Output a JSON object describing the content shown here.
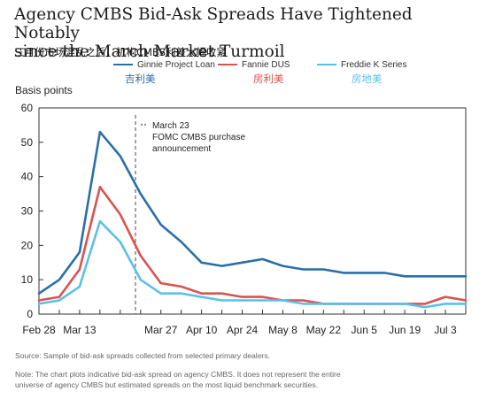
{
  "title_line1": "Agency CMBS Bid-Ask Spreads Have Tightened Notably",
  "title_line2": "since the March Market Turmoil",
  "subtitle_cn": "三月份市场混乱之后，机构CMBS利差大幅收紧",
  "legend": [
    {
      "label": "Ginnie Project Loan",
      "label_cn": "吉利美",
      "color": "#2a6fa8"
    },
    {
      "label": "Fannie DUS",
      "label_cn": "房利美",
      "color": "#d9534f"
    },
    {
      "label": "Freddie K Series",
      "label_cn": "房地美",
      "color": "#5bc0e8"
    }
  ],
  "ylabel": "Basis points",
  "annotation": {
    "line1": "March 23",
    "line2": "FOMC CMBS purchase",
    "line3": "announcement"
  },
  "source": "Source: Sample of bid-ask spreads collected from selected primary dealers.",
  "note_line1": "Note: The chart plots indicative bid-ask spread on agency CMBS. It does not represent the entire",
  "note_line2": "universe of agency CMBS but estimated spreads on the most liquid benchmark securities.",
  "chart_data": {
    "type": "line",
    "title": "Agency CMBS Bid-Ask Spreads Have Tightened Notably since the March Market Turmoil",
    "ylabel": "Basis points",
    "ylim": [
      0,
      60
    ],
    "yticks": [
      0,
      10,
      20,
      30,
      40,
      50,
      60
    ],
    "xticklabels": [
      "Feb 28",
      "Mar 13",
      "Mar 27",
      "Apr 10",
      "Apr 24",
      "May 8",
      "May 22",
      "Jun 5",
      "Jun 19",
      "Jul 3"
    ],
    "x": [
      "Feb 28",
      "Mar 6",
      "Mar 13",
      "Mar 17",
      "Mar 20",
      "Mar 24",
      "Mar 27",
      "Apr 3",
      "Apr 10",
      "Apr 17",
      "Apr 24",
      "May 1",
      "May 8",
      "May 15",
      "May 22",
      "May 29",
      "Jun 5",
      "Jun 12",
      "Jun 19",
      "Jun 26",
      "Jul 3",
      "Jul 10"
    ],
    "vline": {
      "x": "Mar 23",
      "style": "dashed"
    },
    "series": [
      {
        "name": "Ginnie Project Loan",
        "color": "#2a6fa8",
        "values": [
          6,
          10,
          18,
          53,
          46,
          35,
          26,
          21,
          15,
          14,
          15,
          16,
          14,
          13,
          13,
          12,
          12,
          12,
          11,
          11,
          11,
          11
        ]
      },
      {
        "name": "Fannie DUS",
        "color": "#d9534f",
        "values": [
          4,
          5,
          13,
          37,
          29,
          17,
          9,
          8,
          6,
          6,
          5,
          5,
          4,
          4,
          3,
          3,
          3,
          3,
          3,
          3,
          5,
          4
        ]
      },
      {
        "name": "Freddie K Series",
        "color": "#5bc0e8",
        "values": [
          3,
          4,
          8,
          27,
          21,
          10,
          6,
          6,
          5,
          4,
          4,
          4,
          4,
          3,
          3,
          3,
          3,
          3,
          3,
          2,
          3,
          3
        ]
      }
    ],
    "grid": false,
    "legend_position": "top"
  }
}
